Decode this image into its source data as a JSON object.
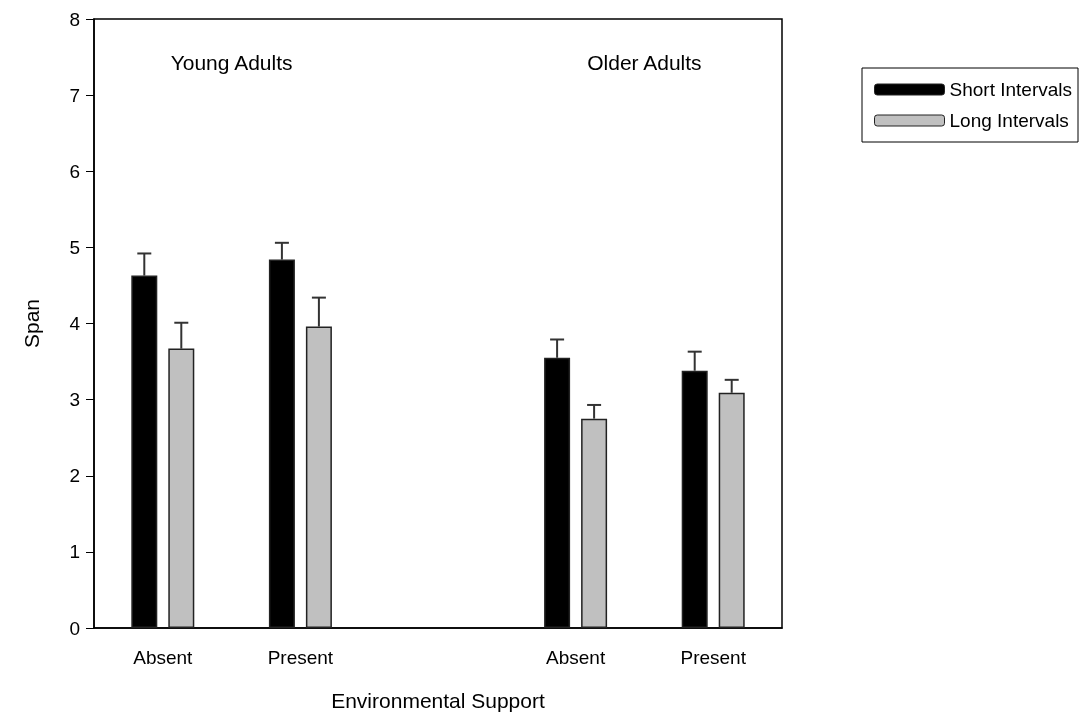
{
  "chart_data": {
    "type": "bar",
    "xlabel": "Environmental Support",
    "ylabel": "Span",
    "categories": [
      "Absent",
      "Present",
      null,
      "Absent",
      "Present"
    ],
    "series": [
      {
        "name": "Short Intervals",
        "color": "#000000",
        "values": [
          4.63,
          4.84,
          null,
          3.55,
          3.38
        ],
        "errors": [
          [
            4.63,
            4.92
          ],
          [
            4.84,
            5.06
          ],
          null,
          [
            3.55,
            3.79
          ],
          [
            3.38,
            3.63
          ]
        ]
      },
      {
        "name": "Long Intervals",
        "color": "#c0c0c0",
        "values": [
          3.67,
          3.96,
          null,
          2.75,
          3.09
        ],
        "errors": [
          [
            3.67,
            4.01
          ],
          [
            3.96,
            4.34
          ],
          null,
          [
            2.75,
            2.93
          ],
          [
            3.09,
            3.26
          ]
        ]
      }
    ],
    "ylim": [
      0,
      8
    ],
    "yticks": [
      0,
      1,
      2,
      3,
      4,
      5,
      6,
      7,
      8
    ],
    "legend": "top right",
    "grid": false,
    "annotations": [
      "Young Adults",
      "Older Adults"
    ]
  }
}
